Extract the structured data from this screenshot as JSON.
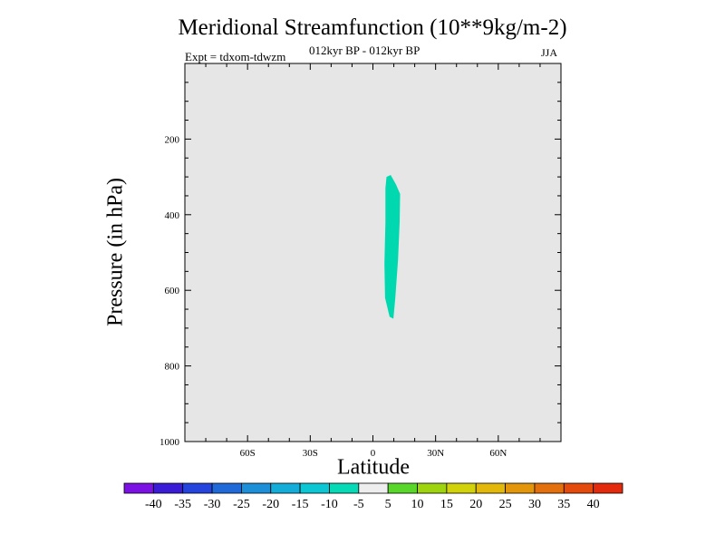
{
  "chart_data": {
    "type": "heatmap",
    "title": "Meridional Streamfunction (10**9kg/m-2)",
    "subtitle_left": "Expt = tdxom-tdwzm",
    "subtitle_center": "012kyr BP - 012kyr BP",
    "subtitle_right": "JJA",
    "xlabel": "Latitude",
    "ylabel": "Pressure (in hPa)",
    "xlim": [
      -90,
      90
    ],
    "ylim": [
      0,
      1000
    ],
    "x_ticks": [
      {
        "value": -60,
        "label": "60S"
      },
      {
        "value": -30,
        "label": "30S"
      },
      {
        "value": 0,
        "label": "0"
      },
      {
        "value": 30,
        "label": "30N"
      },
      {
        "value": 60,
        "label": "60N"
      }
    ],
    "y_ticks": [
      {
        "value": 200,
        "label": "200"
      },
      {
        "value": 400,
        "label": "400"
      },
      {
        "value": 600,
        "label": "600"
      },
      {
        "value": 800,
        "label": "800"
      },
      {
        "value": 1000,
        "label": "1000"
      }
    ],
    "background_level_color": "#e6e6e6",
    "filled_region": {
      "level_range": [
        -10,
        -5
      ],
      "color": "#00d9b0",
      "outline": [
        [
          6.5,
          300
        ],
        [
          8.5,
          295
        ],
        [
          11.0,
          320
        ],
        [
          13.0,
          345
        ],
        [
          12.8,
          420
        ],
        [
          12.0,
          520
        ],
        [
          10.7,
          620
        ],
        [
          9.8,
          675
        ],
        [
          8.0,
          670
        ],
        [
          5.8,
          620
        ],
        [
          5.5,
          530
        ],
        [
          6.0,
          420
        ],
        [
          6.0,
          330
        ]
      ]
    },
    "colorbar": {
      "labels": [
        "-40",
        "-35",
        "-30",
        "-25",
        "-20",
        "-15",
        "-10",
        "-5",
        "5",
        "10",
        "15",
        "20",
        "25",
        "30",
        "35",
        "40"
      ],
      "colors": [
        "#7b12e3",
        "#3b1cd6",
        "#2444dd",
        "#1f6ad8",
        "#1d8fd8",
        "#14acd8",
        "#0cc6d3",
        "#06d9b6",
        "#eeeeee",
        "#58d62a",
        "#9ed40e",
        "#d2d20a",
        "#e2b80a",
        "#e3960a",
        "#e3700c",
        "#e34a0c",
        "#e32a0c"
      ]
    }
  }
}
